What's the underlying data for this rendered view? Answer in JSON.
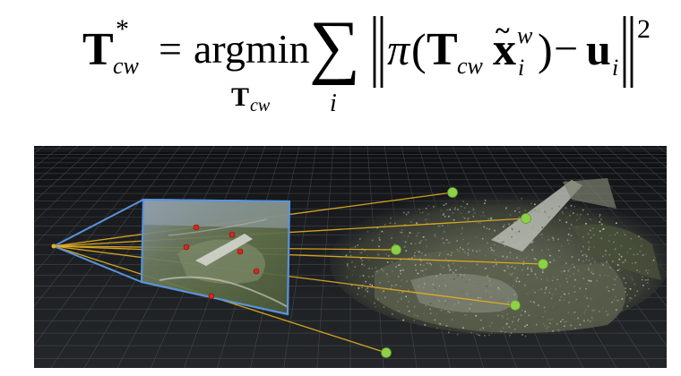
{
  "equation": {
    "lhs_T": "T",
    "lhs_star": "*",
    "lhs_sub": "cw",
    "equals": "=",
    "op": "argmin",
    "op_under_T": "T",
    "op_under_sub": "cw",
    "sum": "∑",
    "sum_index": "i",
    "pi": "π",
    "open_paren": "(",
    "T": "T",
    "T_sub": "cw",
    "x": "x",
    "x_tilde": "~",
    "x_sup": "w",
    "x_sub": "i",
    "close_paren": ")",
    "minus": "−",
    "u": "u",
    "u_sub": "i",
    "exponent": "2"
  },
  "colors": {
    "ray": "#e8b020",
    "map_point": "#8ed04a",
    "image_point": "#d8281c",
    "frustum": "#5b93d8",
    "grid": "#4e5258",
    "ground": "#1e2124"
  }
}
